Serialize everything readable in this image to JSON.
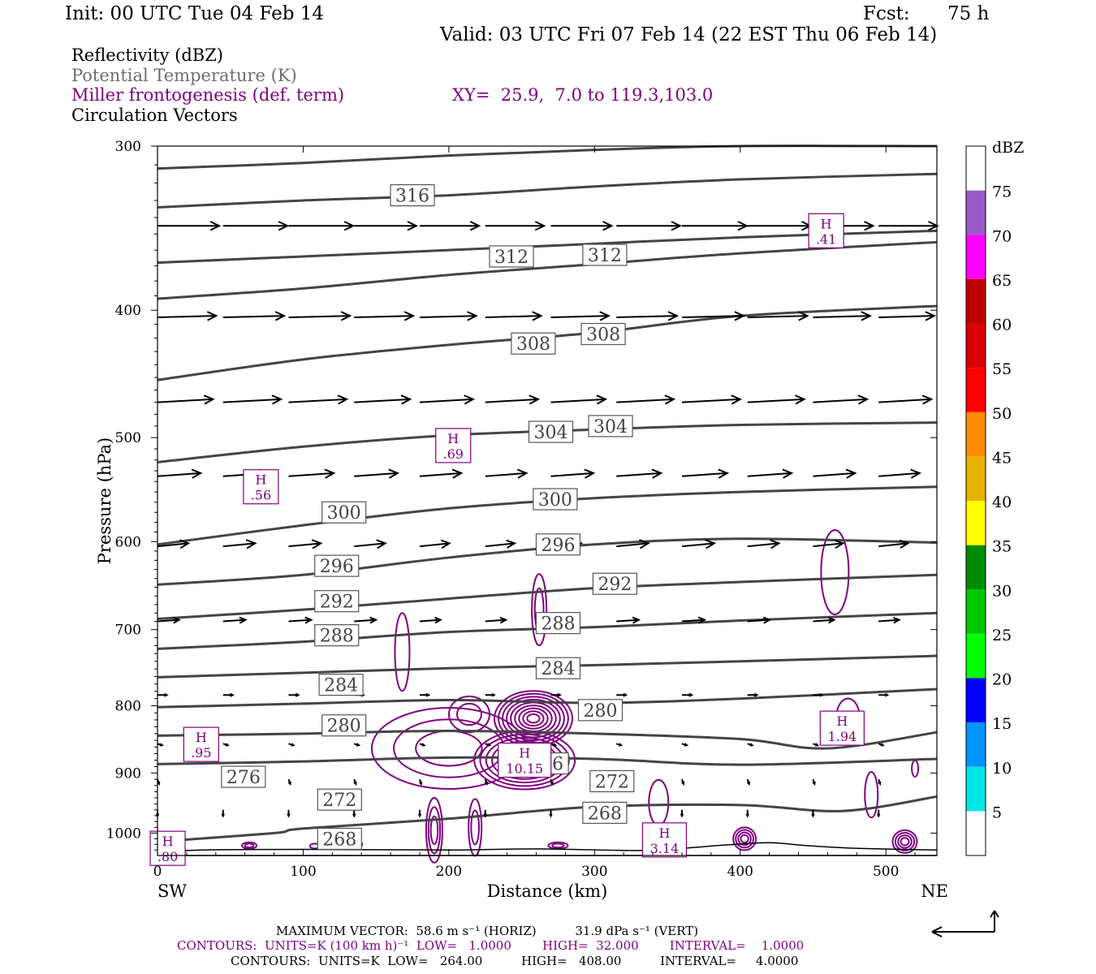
{
  "header": {
    "init": "Init: 00 UTC Tue 04 Feb 14",
    "fcst_label": "Fcst:",
    "fcst_value": "75 h",
    "valid": "Valid: 03 UTC Fri 07 Feb 14 (22 EST Thu 06 Feb 14)"
  },
  "legend": {
    "reflectivity": "Reflectivity (dBZ)",
    "theta": "Potential Temperature (K)",
    "frontogenesis": "Miller frontogenesis (def. term)",
    "xy": "XY=  25.9,  7.0 to 119.3,103.0",
    "vectors": "Circulation Vectors"
  },
  "colorbar": {
    "unit": "dBZ",
    "levels": [
      "5",
      "10",
      "15",
      "20",
      "25",
      "30",
      "35",
      "40",
      "45",
      "50",
      "55",
      "60",
      "65",
      "70",
      "75"
    ],
    "colors": [
      "#ffffff",
      "#00e6e6",
      "#0096ff",
      "#0000ff",
      "#00ff00",
      "#00c800",
      "#008c00",
      "#ffff00",
      "#e6b400",
      "#ff8c00",
      "#ff0000",
      "#dc0000",
      "#be0000",
      "#ff00ff",
      "#9a5bc7",
      "#ffffff"
    ]
  },
  "footer": {
    "max_vector": "MAXIMUM VECTOR:  58.6 m s⁻¹ (HORIZ)          31.9 dPa s⁻¹ (VERT)",
    "contours1": "CONTOURS:  UNITS=K (100 km h)⁻¹  LOW=   1.0000        HIGH=  32.000        INTERVAL=    1.0000",
    "contours2": "CONTOURS:  UNITS=K  LOW=   264.00          HIGH=   408.00          INTERVAL=     4.0000"
  },
  "chart_data": {
    "type": "cross-section",
    "xlabel": "Distance (km)",
    "ylabel": "Pressure (hPa)",
    "x_ticks": [
      0,
      100,
      200,
      300,
      400,
      500
    ],
    "y_ticks": [
      300,
      400,
      500,
      600,
      700,
      800,
      900,
      1000
    ],
    "xlim": [
      0,
      535
    ],
    "ylim": [
      300,
      1040
    ],
    "y_log": true,
    "left_end": "SW",
    "right_end": "NE",
    "theta_labels": [
      {
        "text": "316",
        "x": 175,
        "p": 327
      },
      {
        "text": "312",
        "x": 243,
        "p": 364
      },
      {
        "text": "312",
        "x": 307,
        "p": 363
      },
      {
        "text": "308",
        "x": 258,
        "p": 424
      },
      {
        "text": "308",
        "x": 306,
        "p": 417
      },
      {
        "text": "304",
        "x": 270,
        "p": 495
      },
      {
        "text": "304",
        "x": 311,
        "p": 490
      },
      {
        "text": "300",
        "x": 128,
        "p": 570
      },
      {
        "text": "300",
        "x": 273,
        "p": 557
      },
      {
        "text": "296",
        "x": 123,
        "p": 626
      },
      {
        "text": "296",
        "x": 275,
        "p": 603
      },
      {
        "text": "292",
        "x": 314,
        "p": 646
      },
      {
        "text": "292",
        "x": 123,
        "p": 666
      },
      {
        "text": "288",
        "x": 275,
        "p": 692
      },
      {
        "text": "288",
        "x": 123,
        "p": 707
      },
      {
        "text": "284",
        "x": 275,
        "p": 749
      },
      {
        "text": "284",
        "x": 126,
        "p": 771
      },
      {
        "text": "280",
        "x": 304,
        "p": 806
      },
      {
        "text": "280",
        "x": 128,
        "p": 828
      },
      {
        "text": "276",
        "x": 267,
        "p": 885
      },
      {
        "text": "276",
        "x": 59,
        "p": 906
      },
      {
        "text": "272",
        "x": 312,
        "p": 913
      },
      {
        "text": "272",
        "x": 125,
        "p": 943
      },
      {
        "text": "268",
        "x": 307,
        "p": 965
      },
      {
        "text": "268",
        "x": 125,
        "p": 1010
      }
    ],
    "theta_lines": [
      {
        "k": 316,
        "pts": [
          [
            0,
            312
          ],
          [
            100,
            309
          ],
          [
            200,
            305
          ],
          [
            300,
            302
          ],
          [
            400,
            300
          ],
          [
            535,
            300
          ]
        ]
      },
      {
        "k": 314,
        "pts": [
          [
            0,
            334
          ],
          [
            100,
            330
          ],
          [
            200,
            327
          ],
          [
            300,
            322
          ],
          [
            400,
            318
          ],
          [
            535,
            315
          ]
        ]
      },
      {
        "k": 312,
        "pts": [
          [
            0,
            368
          ],
          [
            100,
            364
          ],
          [
            200,
            360
          ],
          [
            300,
            356
          ],
          [
            400,
            352
          ],
          [
            535,
            348
          ]
        ]
      },
      {
        "k": 310,
        "pts": [
          [
            0,
            392
          ],
          [
            100,
            385
          ],
          [
            200,
            376
          ],
          [
            300,
            369
          ],
          [
            400,
            362
          ],
          [
            535,
            355
          ]
        ]
      },
      {
        "k": 308,
        "pts": [
          [
            0,
            452
          ],
          [
            100,
            436
          ],
          [
            200,
            425
          ],
          [
            300,
            416
          ],
          [
            400,
            404
          ],
          [
            535,
            397
          ]
        ]
      },
      {
        "k": 304,
        "pts": [
          [
            0,
            522
          ],
          [
            100,
            508
          ],
          [
            200,
            498
          ],
          [
            300,
            493
          ],
          [
            400,
            489
          ],
          [
            535,
            487
          ]
        ]
      },
      {
        "k": 300,
        "pts": [
          [
            0,
            603
          ],
          [
            100,
            583
          ],
          [
            200,
            566
          ],
          [
            300,
            556
          ],
          [
            400,
            550
          ],
          [
            535,
            545
          ]
        ]
      },
      {
        "k": 296,
        "pts": [
          [
            0,
            647
          ],
          [
            100,
            636
          ],
          [
            200,
            617
          ],
          [
            300,
            603
          ],
          [
            400,
            597
          ],
          [
            535,
            601
          ]
        ]
      },
      {
        "k": 292,
        "pts": [
          [
            0,
            687
          ],
          [
            100,
            676
          ],
          [
            200,
            663
          ],
          [
            300,
            651
          ],
          [
            400,
            644
          ],
          [
            535,
            636
          ]
        ]
      },
      {
        "k": 288,
        "pts": [
          [
            0,
            724
          ],
          [
            100,
            715
          ],
          [
            200,
            703
          ],
          [
            300,
            697
          ],
          [
            400,
            689
          ],
          [
            535,
            680
          ]
        ]
      },
      {
        "k": 284,
        "pts": [
          [
            0,
            761
          ],
          [
            100,
            755
          ],
          [
            200,
            749
          ],
          [
            300,
            745
          ],
          [
            400,
            740
          ],
          [
            535,
            733
          ]
        ]
      },
      {
        "k": 280,
        "pts": [
          [
            0,
            802
          ],
          [
            100,
            797
          ],
          [
            200,
            792
          ],
          [
            300,
            796
          ],
          [
            400,
            790
          ],
          [
            535,
            777
          ]
        ]
      },
      {
        "k": 276,
        "pts": [
          [
            0,
            843
          ],
          [
            100,
            840
          ],
          [
            200,
            836
          ],
          [
            300,
            840
          ],
          [
            400,
            848
          ],
          [
            460,
            862
          ],
          [
            535,
            838
          ]
        ]
      },
      {
        "k": 272,
        "pts": [
          [
            0,
            886
          ],
          [
            100,
            882
          ],
          [
            200,
            876
          ],
          [
            300,
            878
          ],
          [
            400,
            887
          ],
          [
            535,
            878
          ]
        ]
      },
      {
        "k": 268,
        "pts": [
          [
            0,
            1015
          ],
          [
            80,
            1000
          ],
          [
            100,
            992
          ],
          [
            200,
            975
          ],
          [
            300,
            955
          ],
          [
            400,
            952
          ],
          [
            470,
            962
          ],
          [
            535,
            938
          ]
        ]
      }
    ],
    "frontogenesis_maxima": [
      {
        "label": "H",
        "value": ".56",
        "x": 71,
        "p": 545
      },
      {
        "label": "H",
        "value": ".69",
        "x": 203,
        "p": 507
      },
      {
        "label": "H",
        "value": ".41",
        "x": 459,
        "p": 348
      },
      {
        "label": "H",
        "value": "1.94",
        "x": 470,
        "p": 832
      },
      {
        "label": "H",
        "value": ".95",
        "x": 30,
        "p": 856
      },
      {
        "label": "H",
        "value": "10.15",
        "x": 252,
        "p": 880
      },
      {
        "label": "H",
        "value": "3.14",
        "x": 348,
        "p": 1012
      },
      {
        "label": "H",
        "value": ".80",
        "x": 7,
        "p": 1027
      }
    ],
    "vector_rows": [
      {
        "p": 345,
        "u": 40,
        "v": 0
      },
      {
        "p": 405,
        "u": 38,
        "v": -1
      },
      {
        "p": 470,
        "u": 36,
        "v": -2
      },
      {
        "p": 535,
        "u": 28,
        "v": -2
      },
      {
        "p": 605,
        "u": 20,
        "v": -2
      },
      {
        "p": 690,
        "u": 14,
        "v": -1
      },
      {
        "p": 785,
        "u": 6,
        "v": 0
      },
      {
        "p": 855,
        "u": 3,
        "v": 1
      },
      {
        "p": 910,
        "u": 1,
        "v": 3
      },
      {
        "p": 960,
        "u": 0,
        "v": 4
      }
    ]
  }
}
